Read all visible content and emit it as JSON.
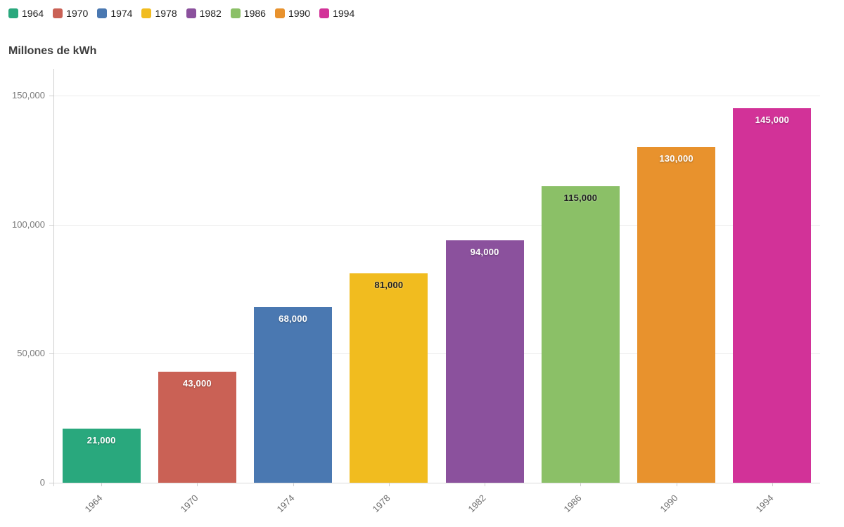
{
  "title": "Millones de kWh",
  "legend": {
    "items": [
      {
        "label": "1964",
        "color": "#29a87d"
      },
      {
        "label": "1970",
        "color": "#ca6155"
      },
      {
        "label": "1974",
        "color": "#4a78b1"
      },
      {
        "label": "1978",
        "color": "#f1bc1f"
      },
      {
        "label": "1982",
        "color": "#8b519d"
      },
      {
        "label": "1986",
        "color": "#8bc067"
      },
      {
        "label": "1990",
        "color": "#e8922d"
      },
      {
        "label": "1994",
        "color": "#d23298"
      }
    ]
  },
  "chart_data": {
    "type": "bar",
    "title": "Millones de kWh",
    "xlabel": "",
    "ylabel": "Millones de kWh",
    "categories": [
      "1964",
      "1970",
      "1974",
      "1978",
      "1982",
      "1986",
      "1990",
      "1994"
    ],
    "values": [
      21000,
      43000,
      68000,
      81000,
      94000,
      115000,
      130000,
      145000
    ],
    "value_labels": [
      "21,000",
      "43,000",
      "68,000",
      "81,000",
      "94,000",
      "115,000",
      "130,000",
      "145,000"
    ],
    "bar_colors": [
      "#29a87d",
      "#ca6155",
      "#4a78b1",
      "#f1bc1f",
      "#8b519d",
      "#8bc067",
      "#e8922d",
      "#d23298"
    ],
    "value_label_styles": [
      "light",
      "light",
      "light",
      "dark",
      "light",
      "dark",
      "light",
      "light"
    ],
    "ylim": [
      0,
      160000
    ],
    "yticks": [
      0,
      50000,
      100000,
      150000
    ],
    "ytick_labels": [
      "0",
      "50,000",
      "100,000",
      "150,000"
    ],
    "grid": true,
    "legend_position": "top"
  }
}
